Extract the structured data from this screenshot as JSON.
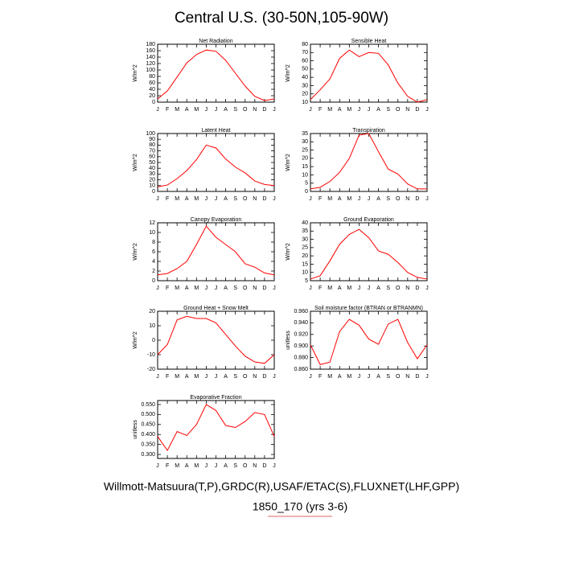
{
  "title": "Central U.S. (30-50N,105-90W)",
  "footer": [
    "Willmott-Matsuura(T,P),GRDC(R),USAF/ETAC(S),FLUXNET(LHF,GPP)",
    "1850_170 (yrs 3-6)"
  ],
  "chart_data": [
    {
      "type": "line",
      "title": "Net Radiation",
      "ylabel": "W/m^2",
      "color": "#ff0000",
      "categories": [
        "J",
        "F",
        "M",
        "A",
        "M",
        "J",
        "J",
        "A",
        "S",
        "O",
        "N",
        "D",
        "J"
      ],
      "values": [
        10,
        35,
        78,
        122,
        148,
        162,
        158,
        130,
        90,
        50,
        18,
        5,
        10
      ],
      "ylim": [
        0,
        180
      ],
      "yticks": [
        0,
        20,
        40,
        60,
        80,
        100,
        120,
        140,
        160,
        180
      ]
    },
    {
      "type": "line",
      "title": "Sensible Heat",
      "ylabel": "W/m^2",
      "color": "#ff0000",
      "categories": [
        "J",
        "F",
        "M",
        "A",
        "M",
        "J",
        "J",
        "A",
        "S",
        "O",
        "N",
        "D",
        "J"
      ],
      "values": [
        13,
        25,
        38,
        63,
        73,
        65,
        70,
        69,
        55,
        33,
        17,
        10,
        13
      ],
      "ylim": [
        10,
        80
      ],
      "yticks": [
        10,
        20,
        30,
        40,
        50,
        60,
        70,
        80
      ]
    },
    {
      "type": "line",
      "title": "Latent Heat",
      "ylabel": "W/m^2",
      "color": "#ff0000",
      "categories": [
        "J",
        "F",
        "M",
        "A",
        "M",
        "J",
        "J",
        "A",
        "S",
        "O",
        "N",
        "D",
        "J"
      ],
      "values": [
        8,
        11,
        22,
        36,
        55,
        80,
        75,
        56,
        42,
        32,
        18,
        12,
        10
      ],
      "ylim": [
        0,
        100
      ],
      "yticks": [
        0,
        10,
        20,
        30,
        40,
        50,
        60,
        70,
        80,
        90,
        100
      ]
    },
    {
      "type": "line",
      "title": "Transpiration",
      "ylabel": "W/m^2",
      "color": "#ff0000",
      "categories": [
        "J",
        "F",
        "M",
        "A",
        "M",
        "J",
        "J",
        "A",
        "S",
        "O",
        "N",
        "D",
        "J"
      ],
      "values": [
        1.5,
        2.5,
        6,
        11.5,
        20,
        34,
        35,
        24,
        13.5,
        10.5,
        4.5,
        1.5,
        1.5
      ],
      "ylim": [
        0,
        35
      ],
      "yticks": [
        0,
        5,
        10,
        15,
        20,
        25,
        30,
        35
      ]
    },
    {
      "type": "line",
      "title": "Canopy Evaporation",
      "ylabel": "W/m^2",
      "color": "#ff0000",
      "categories": [
        "J",
        "F",
        "M",
        "A",
        "M",
        "J",
        "J",
        "A",
        "S",
        "O",
        "N",
        "D",
        "J"
      ],
      "values": [
        1.2,
        1.5,
        2.5,
        4,
        7.5,
        11.3,
        9,
        7.5,
        6,
        3.5,
        2.8,
        1.6,
        1.2
      ],
      "ylim": [
        0,
        12
      ],
      "yticks": [
        0,
        2,
        4,
        6,
        8,
        10,
        12
      ]
    },
    {
      "type": "line",
      "title": "Ground Evaporation",
      "ylabel": "W/m^2",
      "color": "#ff0000",
      "categories": [
        "J",
        "F",
        "M",
        "A",
        "M",
        "J",
        "J",
        "A",
        "S",
        "O",
        "N",
        "D",
        "J"
      ],
      "values": [
        6,
        8,
        17,
        27,
        33,
        36,
        31,
        23,
        21,
        16,
        10,
        7,
        6
      ],
      "ylim": [
        5,
        40
      ],
      "yticks": [
        5,
        10,
        15,
        20,
        25,
        30,
        35,
        40
      ]
    },
    {
      "type": "line",
      "title": "Ground Heat + Snow Melt",
      "ylabel": "W/m^2",
      "color": "#ff0000",
      "categories": [
        "J",
        "F",
        "M",
        "A",
        "M",
        "J",
        "J",
        "A",
        "S",
        "O",
        "N",
        "D",
        "J"
      ],
      "values": [
        -10,
        -3,
        14,
        16.5,
        15,
        15,
        12,
        4,
        -4,
        -11,
        -15,
        -16,
        -10
      ],
      "ylim": [
        -20,
        20
      ],
      "yticks": [
        -20,
        -10,
        0,
        10,
        20
      ]
    },
    {
      "type": "line",
      "title": "Soil moisture factor (BTRAN or BTRANMN)",
      "ylabel": "unitless",
      "color": "#ff0000",
      "categories": [
        "J",
        "F",
        "M",
        "A",
        "M",
        "J",
        "J",
        "A",
        "S",
        "O",
        "N",
        "D",
        "J"
      ],
      "values": [
        0.902,
        0.868,
        0.872,
        0.925,
        0.946,
        0.936,
        0.912,
        0.903,
        0.938,
        0.946,
        0.906,
        0.878,
        0.902
      ],
      "ylim": [
        0.86,
        0.96
      ],
      "yticks": [
        {
          "value": 0.86,
          "label": "0.860"
        },
        {
          "value": 0.88,
          "label": "0.880"
        },
        {
          "value": 0.9,
          "label": "0.900"
        },
        {
          "value": 0.92,
          "label": "0.920"
        },
        {
          "value": 0.94,
          "label": "0.940"
        },
        {
          "value": 0.96,
          "label": "0.960"
        }
      ]
    },
    {
      "type": "line",
      "title": "Evaporative Fraction",
      "ylabel": "unitless",
      "color": "#ff0000",
      "categories": [
        "J",
        "F",
        "M",
        "A",
        "M",
        "J",
        "J",
        "A",
        "S",
        "O",
        "N",
        "D",
        "J"
      ],
      "values": [
        0.39,
        0.32,
        0.415,
        0.395,
        0.45,
        0.55,
        0.52,
        0.445,
        0.435,
        0.465,
        0.51,
        0.5,
        0.39
      ],
      "ylim": [
        0.28,
        0.57
      ],
      "yticks": [
        {
          "value": 0.3,
          "label": "0.300"
        },
        {
          "value": 0.35,
          "label": "0.350"
        },
        {
          "value": 0.4,
          "label": "0.400"
        },
        {
          "value": 0.45,
          "label": "0.450"
        },
        {
          "value": 0.5,
          "label": "0.500"
        },
        {
          "value": 0.55,
          "label": "0.550"
        }
      ]
    }
  ]
}
